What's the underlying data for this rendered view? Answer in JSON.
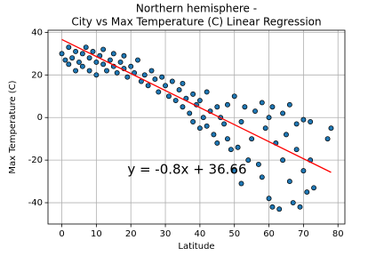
{
  "chart_data": {
    "type": "scatter",
    "title": [
      "Northern hemisphere -",
      "City  vs Max Temperature (C) Linear Regression"
    ],
    "xlabel": "Latitude",
    "ylabel": "Max Temperature (C)",
    "annotation": "y = -0.8x + 36.66",
    "annotation_color": "#ff0000",
    "x": [
      0,
      1,
      2,
      2,
      3,
      4,
      4,
      5,
      6,
      6,
      7,
      8,
      8,
      9,
      10,
      10,
      11,
      12,
      12,
      13,
      14,
      15,
      15,
      16,
      17,
      18,
      18,
      19,
      20,
      21,
      22,
      23,
      24,
      25,
      26,
      27,
      28,
      29,
      30,
      31,
      32,
      33,
      34,
      35,
      35,
      36,
      37,
      38,
      38,
      39,
      40,
      40,
      41,
      42,
      42,
      43,
      44,
      45,
      45,
      46,
      47,
      48,
      48,
      49,
      50,
      50,
      51,
      52,
      52,
      53,
      54,
      55,
      56,
      57,
      58,
      58,
      59,
      60,
      60,
      61,
      61,
      62,
      63,
      64,
      64,
      65,
      66,
      66,
      67,
      68,
      68,
      69,
      70,
      70,
      71,
      72,
      72,
      73,
      77,
      78
    ],
    "values": [
      30,
      27,
      33,
      25,
      28,
      31,
      22,
      26,
      30,
      24,
      33,
      28,
      22,
      31,
      26,
      20,
      29,
      25,
      32,
      22,
      27,
      30,
      24,
      21,
      26,
      23,
      29,
      19,
      24,
      21,
      27,
      17,
      20,
      15,
      22,
      18,
      12,
      19,
      15,
      10,
      17,
      8,
      13,
      5,
      16,
      9,
      2,
      11,
      -2,
      6,
      -5,
      8,
      0,
      12,
      -4,
      3,
      -8,
      5,
      -12,
      0,
      -3,
      -10,
      6,
      -15,
      10,
      -25,
      -14,
      -31,
      -2,
      5,
      -20,
      -10,
      3,
      -22,
      -28,
      7,
      -5,
      0,
      -38,
      -42,
      5,
      -12,
      -43,
      2,
      -20,
      -8,
      -30,
      6,
      -40,
      -15,
      -3,
      -42,
      -1,
      -25,
      -35,
      -20,
      -2,
      -33,
      -10,
      -5
    ],
    "color": "#1f77b4",
    "edgecolor": "#000000",
    "regression": {
      "x": [
        0,
        78
      ],
      "values": [
        36.66,
        -25.74
      ],
      "color": "#ff0000"
    },
    "xlim": [
      -4,
      82
    ],
    "ylim": [
      -50,
      41
    ],
    "xticks": [
      0,
      10,
      20,
      30,
      40,
      50,
      60,
      70,
      80
    ],
    "yticks": [
      -40,
      -20,
      0,
      20,
      40
    ],
    "grid": true
  }
}
